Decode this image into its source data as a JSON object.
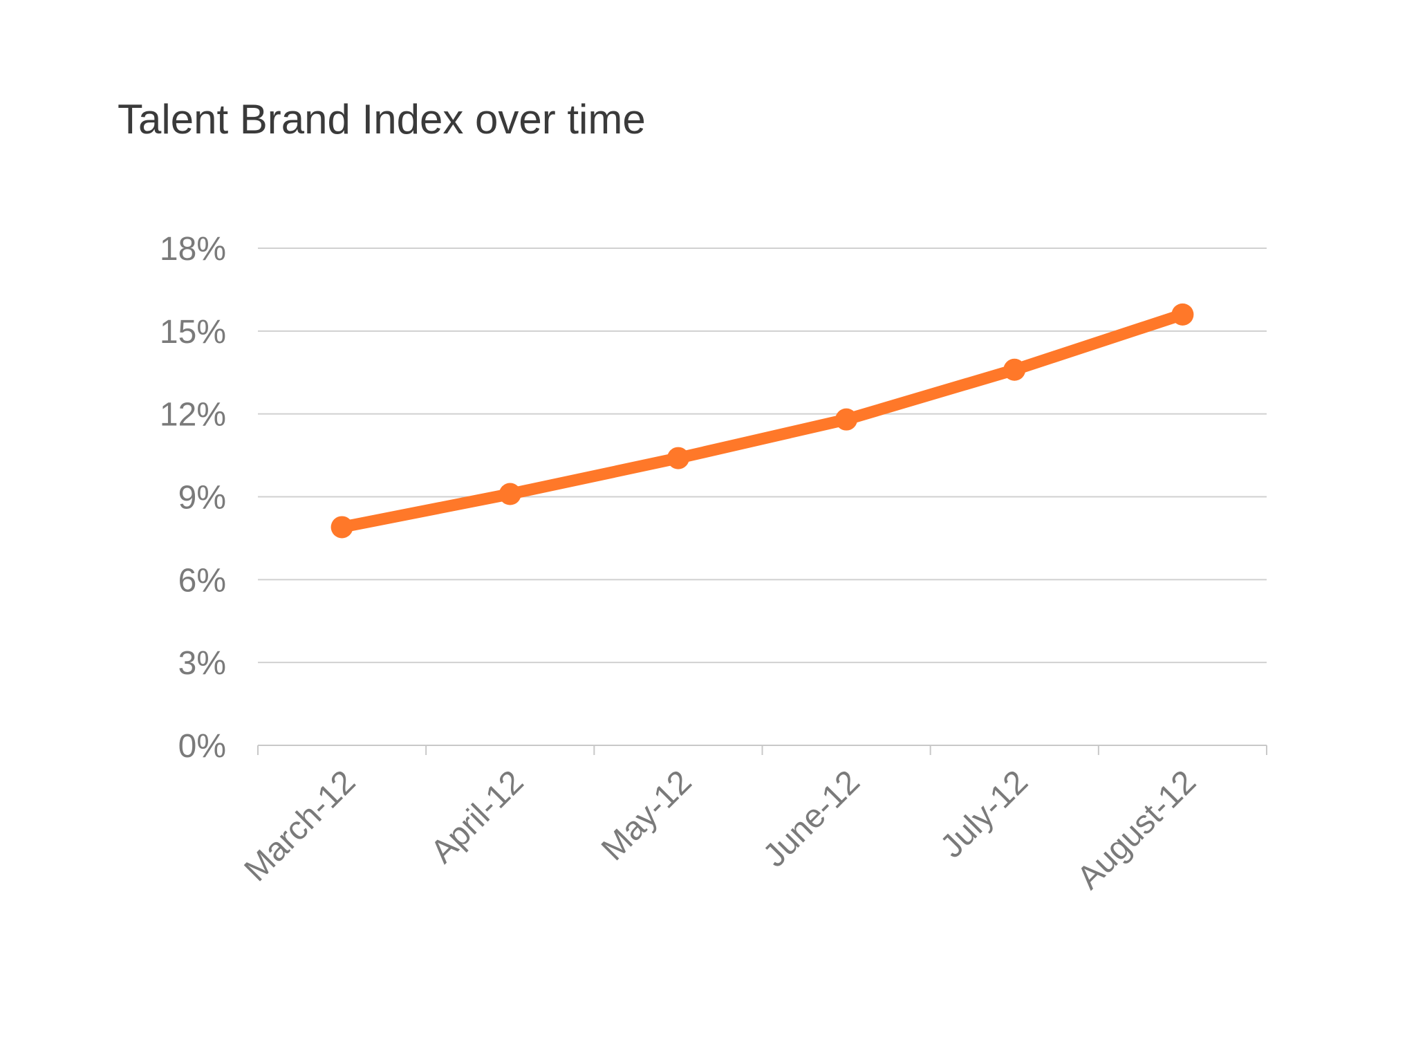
{
  "chart_data": {
    "type": "line",
    "title": "Talent Brand Index over time",
    "xlabel": "",
    "ylabel": "",
    "categories": [
      "March-12",
      "April-12",
      "May-12",
      "June-12",
      "July-12",
      "August-12"
    ],
    "series": [
      {
        "values": [
          7.9,
          9.1,
          10.4,
          11.8,
          13.6,
          15.6
        ],
        "color": "#FF7829"
      }
    ],
    "ylim": [
      0,
      18
    ],
    "yticks": [
      0,
      3,
      6,
      9,
      12,
      15,
      18
    ],
    "ytick_labels": [
      "0%",
      "3%",
      "6%",
      "9%",
      "12%",
      "15%",
      "18%"
    ],
    "grid": true,
    "legend": "none",
    "colors": {
      "gridline": "#d0d0d0",
      "axis": "#c8c8c8",
      "tick_text": "#7a7a7a",
      "title_text": "#3a3a3a"
    }
  }
}
